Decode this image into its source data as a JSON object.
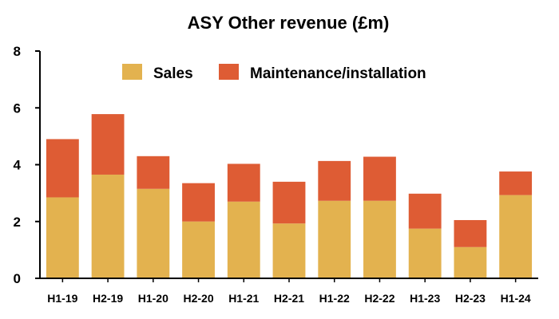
{
  "chart_data": {
    "type": "bar",
    "stacked": true,
    "title": "ASY Other revenue (£m)",
    "xlabel": "",
    "ylabel": "",
    "ylim": [
      0,
      8
    ],
    "yticks": [
      0,
      2,
      4,
      6,
      8
    ],
    "grid": false,
    "legend_position": "top",
    "categories": [
      "H1-19",
      "H2-19",
      "H1-20",
      "H2-20",
      "H1-21",
      "H2-21",
      "H1-22",
      "H2-22",
      "H1-23",
      "H2-23",
      "H1-24"
    ],
    "series": [
      {
        "name": "Sales",
        "color": "#E3B24F",
        "values": [
          2.85,
          3.65,
          3.15,
          2.0,
          2.7,
          1.93,
          2.73,
          2.73,
          1.75,
          1.1,
          2.93
        ]
      },
      {
        "name": "Maintenance/installation",
        "color": "#DE5C34",
        "values": [
          2.05,
          2.13,
          1.15,
          1.35,
          1.33,
          1.47,
          1.4,
          1.55,
          1.23,
          0.95,
          0.83
        ]
      }
    ]
  }
}
